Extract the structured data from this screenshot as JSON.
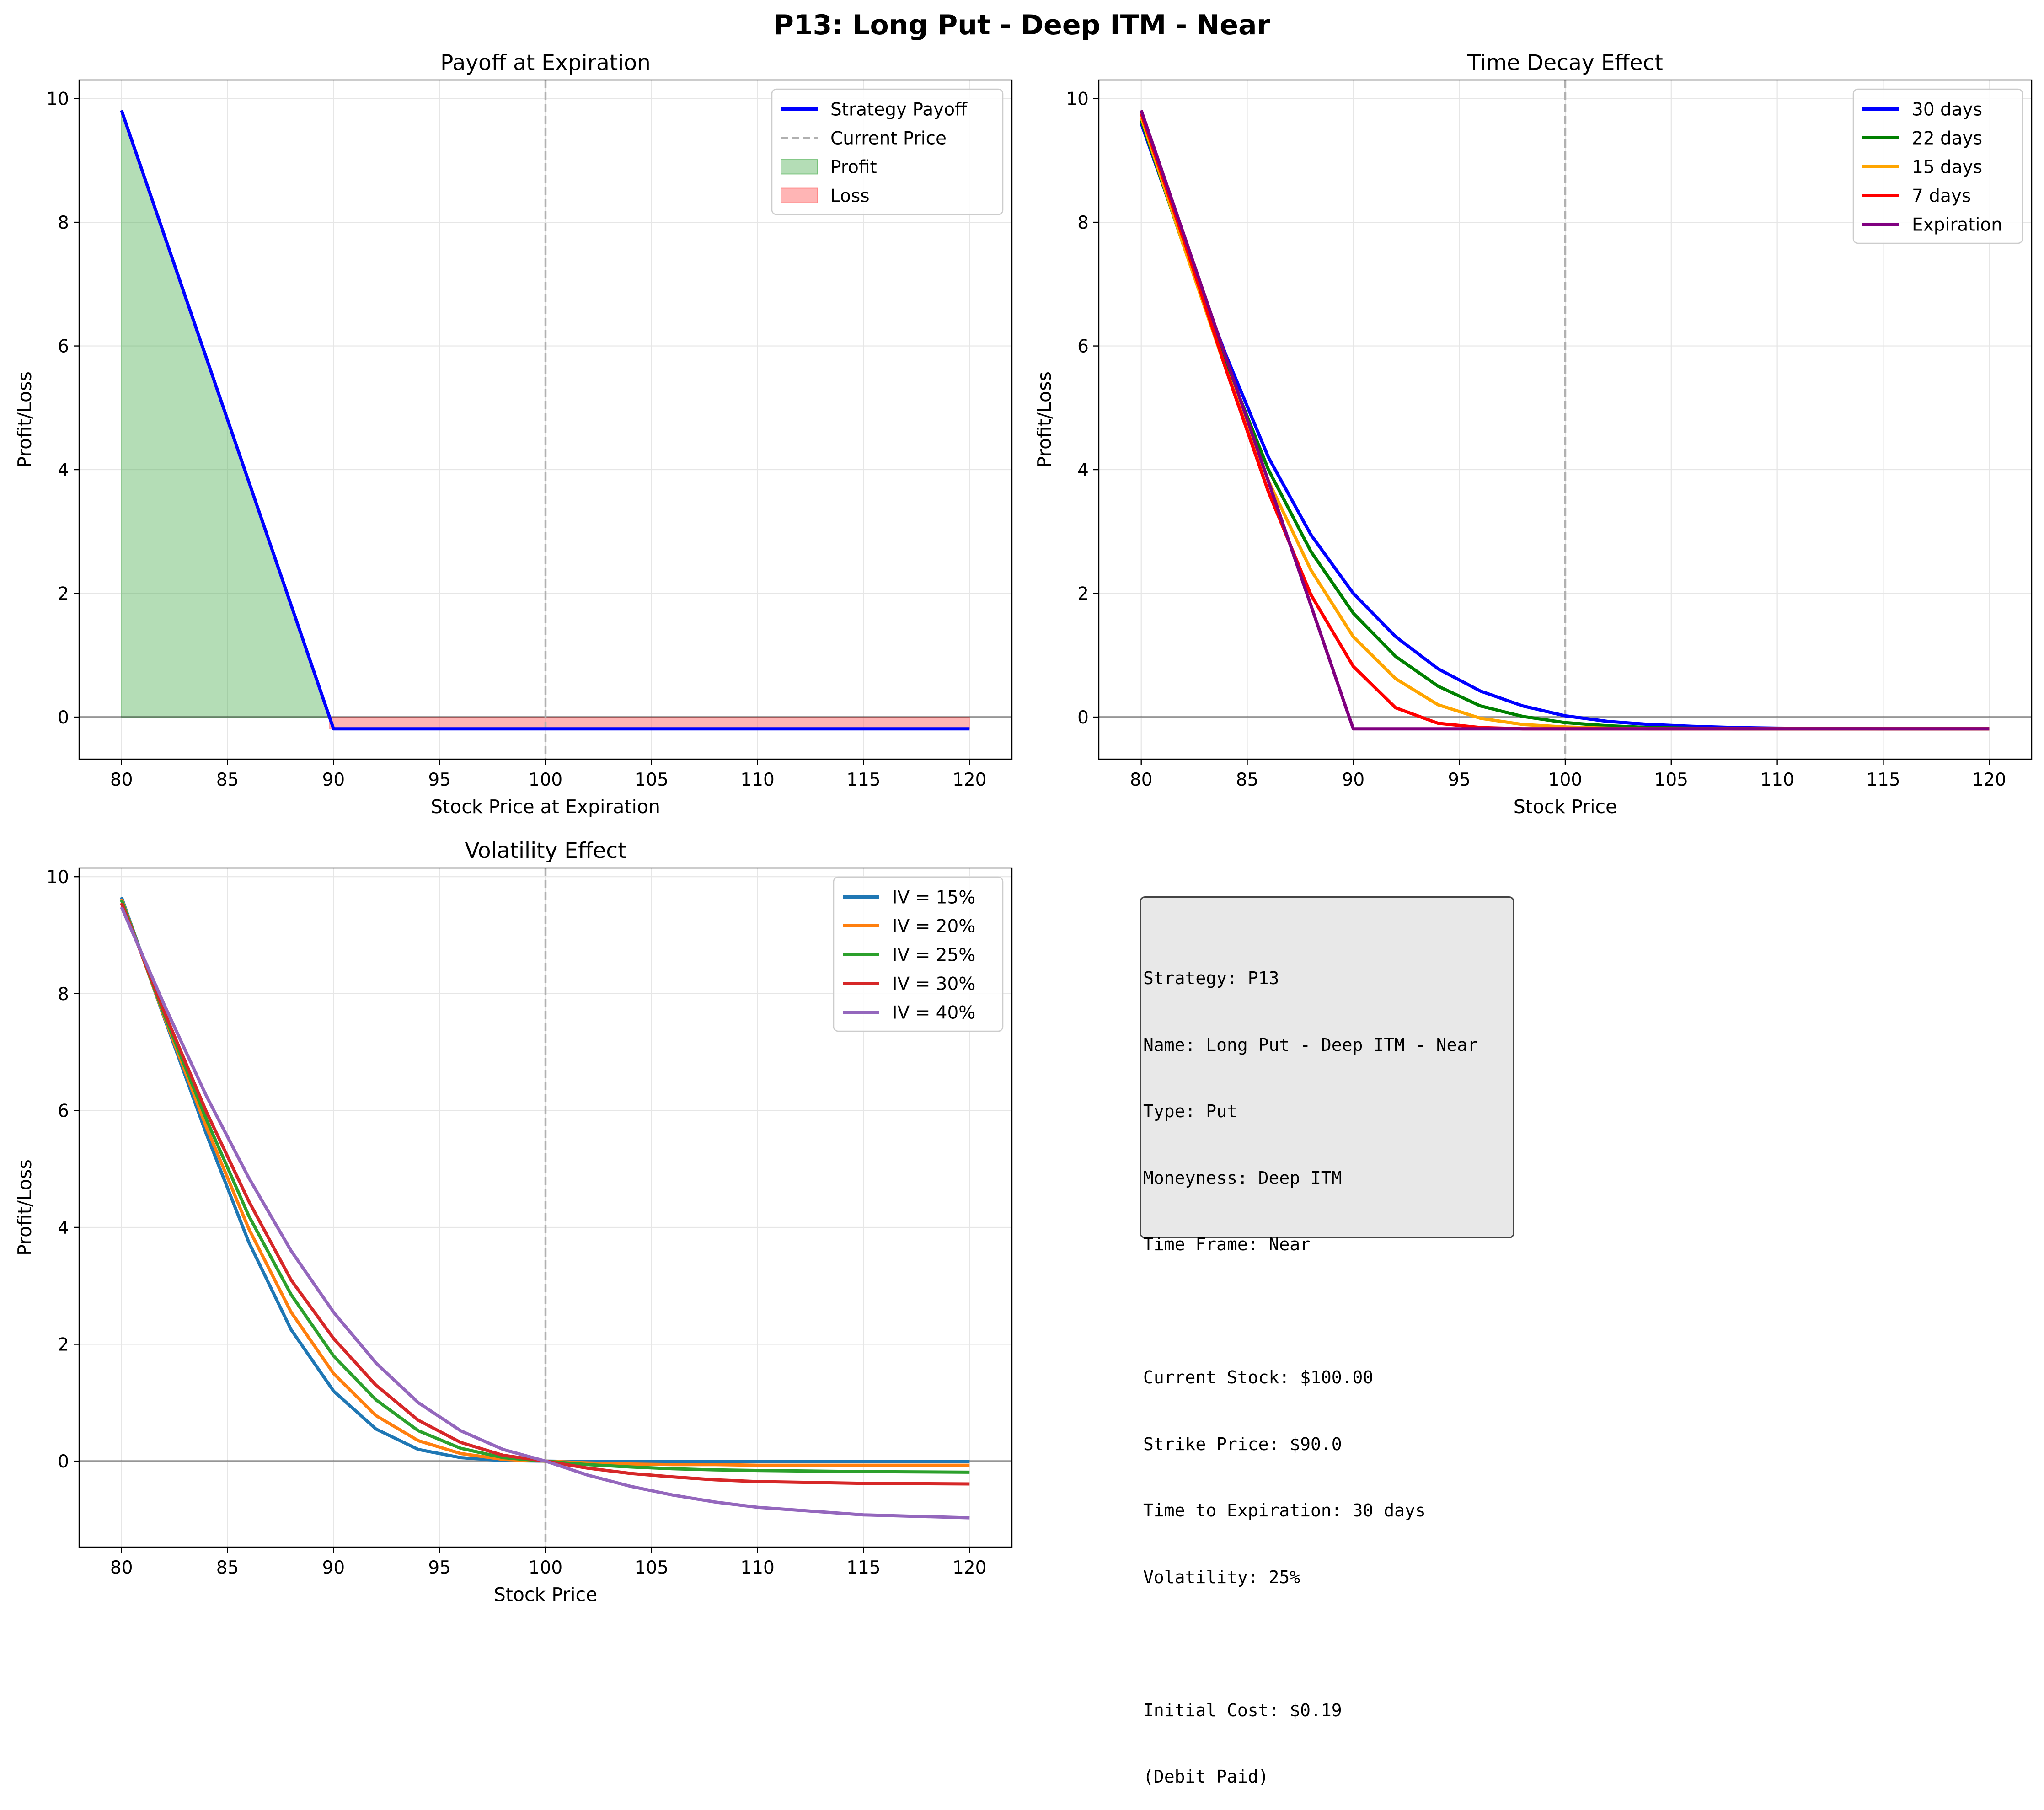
{
  "figure": {
    "suptitle": "P13: Long Put - Deep ITM - Near"
  },
  "chart_data": [
    {
      "id": "payoff",
      "type": "line",
      "title": "Payoff at Expiration",
      "xlabel": "Stock Price at Expiration",
      "ylabel": "Profit/Loss",
      "xlim": [
        78,
        122
      ],
      "ylim": [
        -0.68,
        10.3
      ],
      "xticks": [
        80,
        85,
        90,
        95,
        100,
        105,
        110,
        115,
        120
      ],
      "yticks": [
        0,
        2,
        4,
        6,
        8,
        10
      ],
      "current_price": 100,
      "strike": 90,
      "cost": 0.19,
      "legend_position": "top-right",
      "grid": true,
      "series": [
        {
          "name": "Strategy Payoff",
          "color": "#0000ff",
          "style": "solid",
          "x": [
            80,
            90,
            120
          ],
          "y": [
            9.81,
            -0.19,
            -0.19
          ]
        },
        {
          "name": "Current Price",
          "color": "#b0b0b0",
          "style": "dashed",
          "x": [
            100,
            100
          ],
          "y": [
            -0.68,
            10.3
          ]
        }
      ],
      "fills": [
        {
          "name": "Profit",
          "color": "#4caf50",
          "x": [
            80,
            89.81
          ],
          "y": [
            9.81,
            0
          ]
        },
        {
          "name": "Loss",
          "color": "#ff6b6b",
          "x": [
            89.81,
            120
          ],
          "y": [
            -0.19,
            -0.19
          ]
        }
      ]
    },
    {
      "id": "time_decay",
      "type": "line",
      "title": "Time Decay Effect",
      "xlabel": "Stock Price",
      "ylabel": "Profit/Loss",
      "xlim": [
        78,
        122
      ],
      "ylim": [
        -0.68,
        10.3
      ],
      "xticks": [
        80,
        85,
        90,
        95,
        100,
        105,
        110,
        115,
        120
      ],
      "yticks": [
        0,
        2,
        4,
        6,
        8,
        10
      ],
      "current_price": 100,
      "legend_position": "top-right",
      "grid": true,
      "x": [
        80,
        82,
        84,
        86,
        88,
        90,
        92,
        94,
        96,
        98,
        100,
        102,
        104,
        106,
        108,
        110,
        115,
        120
      ],
      "series": [
        {
          "name": "30 days",
          "color": "#0000ff",
          "y": [
            9.6,
            7.65,
            5.85,
            4.2,
            2.95,
            2.0,
            1.3,
            0.78,
            0.42,
            0.18,
            0.02,
            -0.07,
            -0.12,
            -0.15,
            -0.17,
            -0.18,
            -0.19,
            -0.19
          ]
        },
        {
          "name": "22 days",
          "color": "#008000",
          "y": [
            9.65,
            7.62,
            5.72,
            4.0,
            2.68,
            1.68,
            0.98,
            0.5,
            0.18,
            0.01,
            -0.09,
            -0.14,
            -0.17,
            -0.18,
            -0.19,
            -0.19,
            -0.19,
            -0.19
          ]
        },
        {
          "name": "15 days",
          "color": "#ffa500",
          "y": [
            9.7,
            7.62,
            5.62,
            3.82,
            2.38,
            1.3,
            0.62,
            0.2,
            -0.02,
            -0.12,
            -0.16,
            -0.18,
            -0.19,
            -0.19,
            -0.19,
            -0.19,
            -0.19,
            -0.19
          ]
        },
        {
          "name": "7 days",
          "color": "#ff0000",
          "y": [
            9.76,
            7.72,
            5.62,
            3.64,
            1.98,
            0.82,
            0.15,
            -0.1,
            -0.17,
            -0.19,
            -0.19,
            -0.19,
            -0.19,
            -0.19,
            -0.19,
            -0.19,
            -0.19,
            -0.19
          ]
        },
        {
          "name": "Expiration",
          "color": "#800080",
          "y": [
            9.81,
            7.81,
            5.81,
            3.81,
            1.81,
            -0.19,
            -0.19,
            -0.19,
            -0.19,
            -0.19,
            -0.19,
            -0.19,
            -0.19,
            -0.19,
            -0.19,
            -0.19,
            -0.19,
            -0.19
          ]
        }
      ]
    },
    {
      "id": "volatility",
      "type": "line",
      "title": "Volatility Effect",
      "xlabel": "Stock Price",
      "ylabel": "Profit/Loss",
      "xlim": [
        78,
        122
      ],
      "ylim": [
        -1.47,
        10.15
      ],
      "xticks": [
        80,
        85,
        90,
        95,
        100,
        105,
        110,
        115,
        120
      ],
      "yticks": [
        0,
        2,
        4,
        6,
        8,
        10
      ],
      "current_price": 100,
      "legend_position": "top-right",
      "grid": true,
      "x": [
        80,
        82,
        84,
        86,
        88,
        90,
        92,
        94,
        96,
        98,
        100,
        102,
        104,
        106,
        108,
        110,
        115,
        120
      ],
      "series": [
        {
          "name": "IV = 15%",
          "color": "#1f77b4",
          "y": [
            9.65,
            7.6,
            5.6,
            3.75,
            2.25,
            1.2,
            0.55,
            0.2,
            0.06,
            0.01,
            0.0,
            -0.01,
            -0.01,
            -0.01,
            -0.01,
            -0.01,
            -0.01,
            -0.01
          ]
        },
        {
          "name": "IV = 20%",
          "color": "#ff7f0e",
          "y": [
            9.62,
            7.62,
            5.72,
            3.98,
            2.55,
            1.5,
            0.78,
            0.35,
            0.13,
            0.03,
            0.0,
            -0.03,
            -0.05,
            -0.06,
            -0.06,
            -0.07,
            -0.07,
            -0.07
          ]
        },
        {
          "name": "IV = 25%",
          "color": "#2ca02c",
          "y": [
            9.6,
            7.65,
            5.85,
            4.2,
            2.85,
            1.8,
            1.05,
            0.52,
            0.22,
            0.06,
            0.0,
            -0.06,
            -0.1,
            -0.13,
            -0.15,
            -0.16,
            -0.18,
            -0.19
          ]
        },
        {
          "name": "IV = 30%",
          "color": "#d62728",
          "y": [
            9.55,
            7.7,
            5.98,
            4.45,
            3.1,
            2.1,
            1.3,
            0.7,
            0.32,
            0.1,
            0.0,
            -0.12,
            -0.21,
            -0.27,
            -0.32,
            -0.35,
            -0.38,
            -0.39
          ]
        },
        {
          "name": "IV = 40%",
          "color": "#9467bd",
          "y": [
            9.48,
            7.82,
            6.25,
            4.85,
            3.6,
            2.55,
            1.68,
            1.0,
            0.52,
            0.2,
            0.0,
            -0.24,
            -0.43,
            -0.58,
            -0.7,
            -0.79,
            -0.92,
            -0.97
          ]
        }
      ]
    }
  ],
  "info": {
    "strategy": "Strategy: P13",
    "name": "Name: Long Put - Deep ITM - Near",
    "type": "Type: Put",
    "moneyness": "Moneyness: Deep ITM",
    "time_frame": "Time Frame: Near",
    "current_stock": "Current Stock: $100.00",
    "strike_price": "Strike Price: $90.0",
    "time_to_expiration": "Time to Expiration: 30 days",
    "volatility": "Volatility: 25%",
    "initial_cost": "Initial Cost: $0.19",
    "debit_note": "(Debit Paid)"
  }
}
